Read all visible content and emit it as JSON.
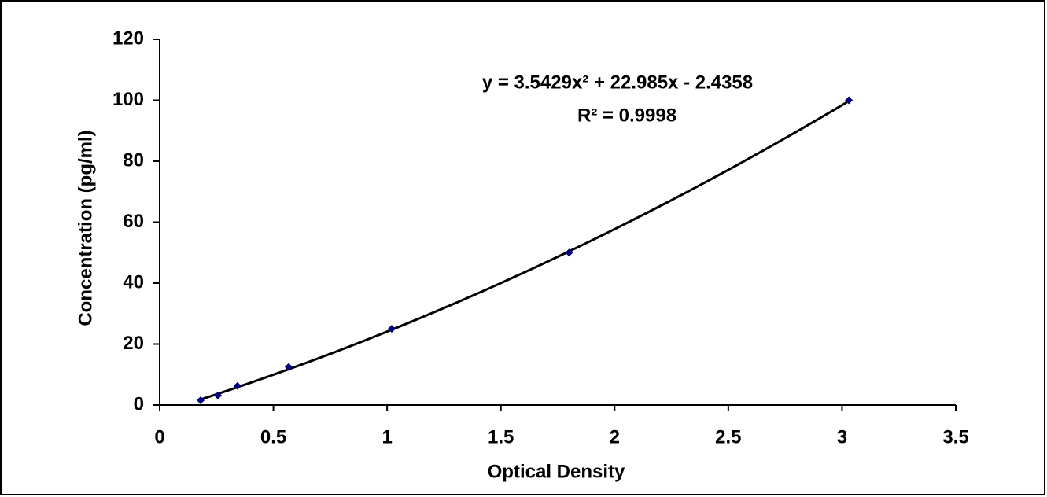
{
  "chart_data": {
    "type": "scatter",
    "x_label": "Optical Density",
    "y_label": "Concentration (pg/ml)",
    "x": [
      0.18,
      0.256,
      0.342,
      0.567,
      1.02,
      1.8,
      3.03
    ],
    "values": [
      1.56,
      3.12,
      6.25,
      12.5,
      25,
      50,
      100
    ],
    "color": "#000080",
    "xlim": [
      0,
      3.5
    ],
    "xticks": [
      0,
      0.5,
      1,
      1.5,
      2,
      2.5,
      3,
      3.5
    ],
    "ylim": [
      0,
      120
    ],
    "yticks": [
      0,
      20,
      40,
      60,
      80,
      100,
      120
    ],
    "grid": false,
    "trendline": {
      "coefficients": [
        3.5429,
        22.985,
        -2.4358
      ],
      "color": "#000000",
      "equation": "y = 3.5429x² + 22.985x - 2.4358",
      "r_squared": "R² = 0.9998"
    }
  }
}
